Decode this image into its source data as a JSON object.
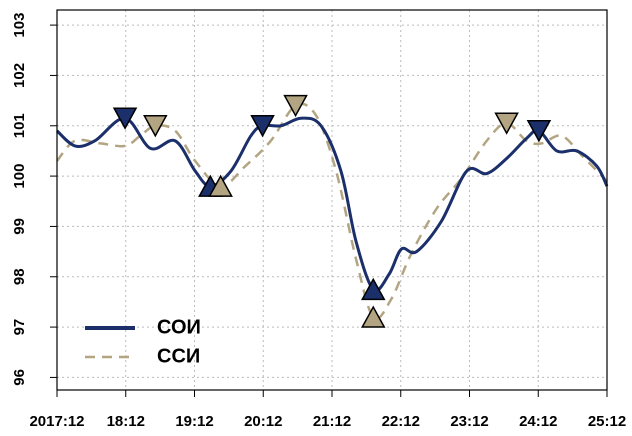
{
  "chart_data": {
    "type": "line",
    "xlim": [
      2018,
      2026
    ],
    "xticks": [
      {
        "value": 2018,
        "label": "2017:12"
      },
      {
        "value": 2019,
        "label": "18:12"
      },
      {
        "value": 2020,
        "label": "19:12"
      },
      {
        "value": 2021,
        "label": "20:12"
      },
      {
        "value": 2022,
        "label": "21:12"
      },
      {
        "value": 2023,
        "label": "22:12"
      },
      {
        "value": 2024,
        "label": "23:12"
      },
      {
        "value": 2025,
        "label": "24:12"
      },
      {
        "value": 2026,
        "label": "25:12"
      }
    ],
    "ylim": [
      95.75,
      103.3
    ],
    "yticks": [
      96,
      97,
      98,
      99,
      100,
      101,
      102,
      103
    ],
    "grid": true,
    "legend": "bottom-left",
    "series": [
      {
        "name": "СОИ",
        "color": "#1b2f6b",
        "dash": false,
        "x": [
          2018,
          2018.26,
          2018.55,
          2018.99,
          2019.36,
          2019.72,
          2020.01,
          2020.23,
          2020.53,
          2020.82,
          2020.99,
          2021.26,
          2021.55,
          2021.84,
          2022.13,
          2022.35,
          2022.6,
          2022.83,
          2023.01,
          2023.23,
          2023.59,
          2023.96,
          2024.25,
          2024.54,
          2024.83,
          2025.01,
          2025.27,
          2025.56,
          2025.85,
          2026
        ],
        "values": [
          100.9,
          100.6,
          100.7,
          101.15,
          100.55,
          100.7,
          100.1,
          99.8,
          100.1,
          100.8,
          101.0,
          101.0,
          101.15,
          101.0,
          100.1,
          98.7,
          97.75,
          98.05,
          98.55,
          98.5,
          99.1,
          100.1,
          100.05,
          100.35,
          100.75,
          100.9,
          100.5,
          100.5,
          100.2,
          99.8
        ],
        "peaks": [
          3,
          10,
          25
        ],
        "troughs": [
          7,
          16
        ]
      },
      {
        "name": "ССИ",
        "color": "#b3a582",
        "dash": true,
        "x": [
          2018,
          2018.26,
          2018.63,
          2018.99,
          2019.21,
          2019.43,
          2019.72,
          2020.01,
          2020.38,
          2020.74,
          2021.11,
          2021.47,
          2021.77,
          2022.06,
          2022.35,
          2022.6,
          2022.86,
          2023.15,
          2023.52,
          2023.88,
          2024.25,
          2024.54,
          2024.83,
          2025.05,
          2025.34,
          2025.64,
          2026
        ],
        "values": [
          100.3,
          100.7,
          100.65,
          100.6,
          100.8,
          101.0,
          100.9,
          100.3,
          99.8,
          100.2,
          100.7,
          101.4,
          101.2,
          100.1,
          98.35,
          97.2,
          97.55,
          98.45,
          99.35,
          99.95,
          100.7,
          101.05,
          100.7,
          100.65,
          100.8,
          100.4,
          99.9
        ],
        "peaks": [
          5,
          11,
          21
        ],
        "troughs": [
          8,
          15
        ]
      }
    ]
  }
}
